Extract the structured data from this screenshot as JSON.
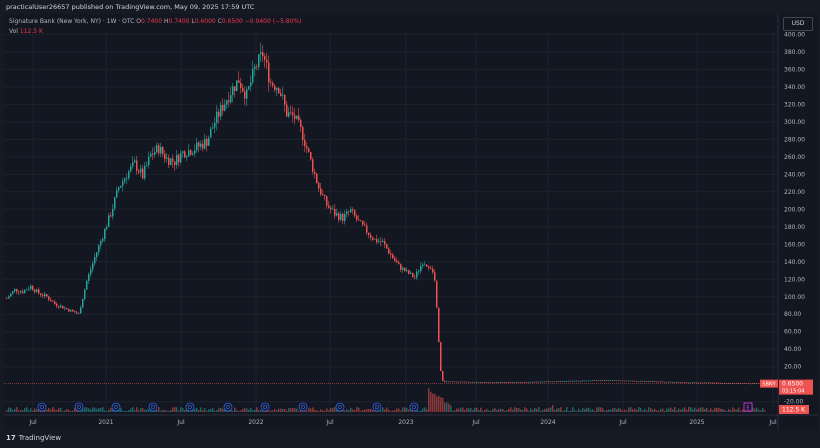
{
  "publisher": "practicalUser26657 published on TradingView.com, May 09, 2025 17:59 UTC",
  "header": {
    "symbol": "Signature Bank (New York, NY) · 1W · OTC",
    "open_label": "O",
    "open": "0.7400",
    "high_label": "H",
    "high": "0.7400",
    "low_label": "L",
    "low": "0.6000",
    "close_label": "C",
    "close": "0.6500",
    "change": "−0.0400 (−5.80%)",
    "vol_label": "Vol",
    "vol": "112.5 K"
  },
  "currency_button": "USD",
  "last_price": {
    "ticker": "SBNY",
    "price": "0.6500",
    "countdown": "03:15:04"
  },
  "volume_label": "112.5 K",
  "event_marker": "E",
  "dividend_marker": "D",
  "footer_brand": "TradingView",
  "colors": {
    "up": "#26a69a",
    "down": "#ef5350",
    "grid": "#1e222d",
    "background": "#131722"
  },
  "chart_data": {
    "type": "candlestick",
    "title": "Signature Bank (New York, NY) · 1W · OTC",
    "y_ticks": [
      400,
      380,
      360,
      340,
      320,
      300,
      280,
      260,
      240,
      220,
      200,
      180,
      160,
      140,
      120,
      100,
      80,
      60,
      40,
      20,
      -20
    ],
    "ylim": [
      -20,
      400
    ],
    "x_ticks": [
      "Jul",
      "2021",
      "Jul",
      "2022",
      "Jul",
      "2023",
      "Jul",
      "2024",
      "Jul",
      "2025",
      "Jul"
    ],
    "price_path": [
      [
        0,
        98
      ],
      [
        8,
        108
      ],
      [
        16,
        106
      ],
      [
        24,
        112
      ],
      [
        32,
        104
      ],
      [
        40,
        100
      ],
      [
        48,
        92
      ],
      [
        56,
        88
      ],
      [
        64,
        84
      ],
      [
        72,
        80
      ],
      [
        80,
        118
      ],
      [
        88,
        145
      ],
      [
        96,
        170
      ],
      [
        104,
        195
      ],
      [
        112,
        225
      ],
      [
        120,
        240
      ],
      [
        128,
        252
      ],
      [
        136,
        238
      ],
      [
        144,
        262
      ],
      [
        152,
        270
      ],
      [
        160,
        258
      ],
      [
        168,
        255
      ],
      [
        176,
        265
      ],
      [
        184,
        268
      ],
      [
        192,
        272
      ],
      [
        200,
        278
      ],
      [
        208,
        300
      ],
      [
        216,
        318
      ],
      [
        224,
        335
      ],
      [
        232,
        348
      ],
      [
        240,
        330
      ],
      [
        248,
        360
      ],
      [
        256,
        378
      ],
      [
        264,
        345
      ],
      [
        272,
        340
      ],
      [
        280,
        310
      ],
      [
        288,
        305
      ],
      [
        296,
        285
      ],
      [
        304,
        255
      ],
      [
        312,
        225
      ],
      [
        320,
        205
      ],
      [
        328,
        195
      ],
      [
        336,
        190
      ],
      [
        344,
        198
      ],
      [
        352,
        185
      ],
      [
        360,
        175
      ],
      [
        368,
        165
      ],
      [
        376,
        162
      ],
      [
        384,
        148
      ],
      [
        392,
        135
      ],
      [
        400,
        128
      ],
      [
        408,
        122
      ],
      [
        416,
        140
      ],
      [
        424,
        135
      ],
      [
        428,
        118
      ],
      [
        431,
        70
      ],
      [
        433,
        25
      ],
      [
        435,
        5
      ],
      [
        437,
        3
      ],
      [
        460,
        2.5
      ],
      [
        480,
        2.2
      ],
      [
        500,
        2.0
      ],
      [
        520,
        2.3
      ],
      [
        540,
        3.0
      ],
      [
        560,
        3.5
      ],
      [
        580,
        4.0
      ],
      [
        600,
        4.5
      ],
      [
        620,
        4.0
      ],
      [
        640,
        3.2
      ],
      [
        660,
        2.6
      ],
      [
        680,
        2.0
      ],
      [
        700,
        1.6
      ],
      [
        720,
        1.2
      ],
      [
        740,
        0.9
      ],
      [
        760,
        0.65
      ]
    ],
    "last_price": 0.65,
    "volume_peak_date": "Mar 2023"
  }
}
